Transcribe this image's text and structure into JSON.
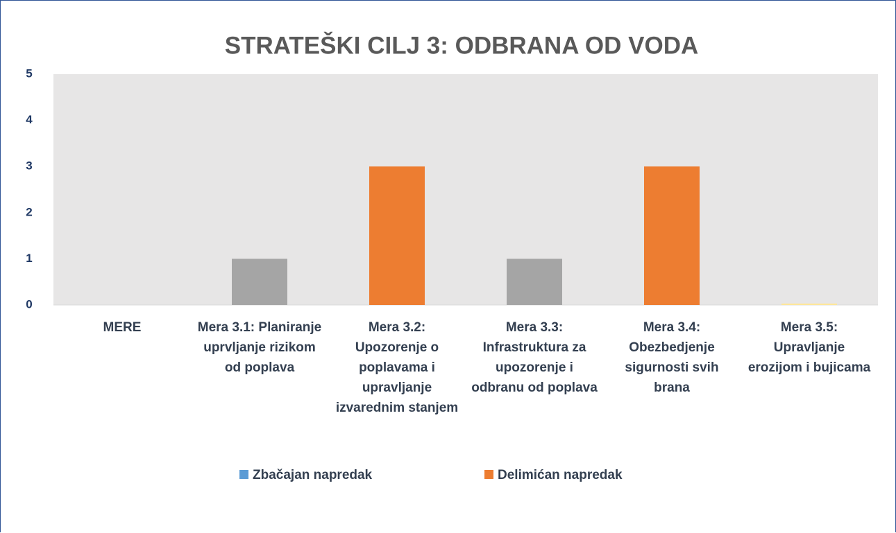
{
  "chart_data": {
    "type": "bar",
    "title": "STRATEŠKI CILJ 3: ODBRANA OD VODA",
    "categories": [
      "MERE",
      "Mera 3.1: Planiranje uprvljanje rizikom od poplava",
      "Mera 3.2: Upozorenje o poplavama i upravljanje izvarednim stanjem",
      "Mera 3.3: Infrastruktura za upozorenje i odbranu od poplava",
      "Mera 3.4: Obezbedjenje sigurnosti svih brana",
      "Mera 3.5: Upravljanje erozijom i bujicama"
    ],
    "values": [
      0,
      1,
      3,
      1,
      3,
      0.03
    ],
    "colors": [
      "#a5a5a5",
      "#a5a5a5",
      "#ed7d31",
      "#a5a5a5",
      "#ed7d31",
      "#ffe699"
    ],
    "legend": [
      {
        "name": "Zbačajan napredak",
        "color": "#5b9bd5"
      },
      {
        "name": "Delimićan napredak",
        "color": "#ed7d31"
      }
    ],
    "ylim": [
      0,
      5
    ],
    "yticks": [
      0,
      1,
      2,
      3,
      4,
      5
    ],
    "grid": false
  }
}
